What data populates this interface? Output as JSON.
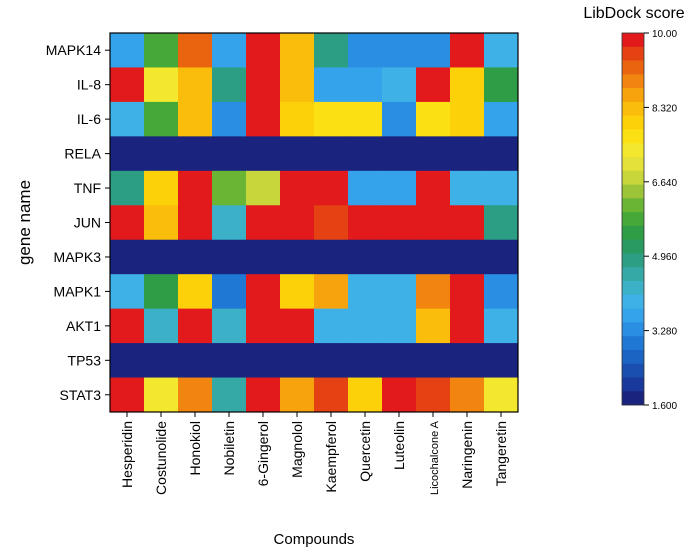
{
  "chart_data": {
    "type": "heatmap",
    "title": "",
    "xlabel": "Compounds",
    "ylabel": "gene name",
    "compounds": [
      "Hesperidin",
      "Costunolide",
      "Honokiol",
      "Nobiletin",
      "6-Gingerol",
      "Magnolol",
      "Kaempferol",
      "Quercetin",
      "Luteolin",
      "Licochalcone A",
      "Naringenin",
      "Tangeretin"
    ],
    "genes": [
      "MAPK14",
      "IL-8",
      "IL-6",
      "RELA",
      "TNF",
      "JUN",
      "MAPK3",
      "MAPK1",
      "AKT1",
      "TP53",
      "STAT3"
    ],
    "values": [
      [
        3.6,
        5.9,
        9.1,
        3.5,
        10.0,
        8.4,
        5.0,
        3.3,
        3.3,
        3.3,
        10.0,
        3.9
      ],
      [
        10.0,
        7.4,
        8.4,
        4.9,
        10.0,
        8.3,
        3.6,
        3.6,
        3.8,
        10.0,
        8.0,
        5.4
      ],
      [
        3.8,
        5.9,
        8.2,
        3.4,
        10.0,
        8.0,
        7.6,
        7.6,
        3.4,
        7.6,
        8.0,
        3.7
      ],
      [
        1.6,
        1.6,
        1.6,
        1.6,
        1.6,
        1.6,
        1.6,
        1.6,
        1.6,
        1.6,
        1.6,
        1.6
      ],
      [
        5.0,
        8.0,
        10.0,
        6.0,
        6.7,
        10.0,
        10.0,
        3.5,
        3.5,
        10.0,
        3.9,
        3.9
      ],
      [
        10.0,
        8.4,
        10.0,
        4.3,
        10.0,
        10.0,
        9.4,
        10.0,
        10.0,
        10.0,
        10.0,
        4.9
      ],
      [
        1.6,
        1.6,
        1.6,
        1.6,
        1.6,
        1.6,
        1.6,
        1.6,
        1.6,
        1.6,
        1.6,
        1.6
      ],
      [
        3.9,
        5.6,
        8.0,
        2.9,
        10.0,
        8.0,
        8.7,
        3.9,
        3.9,
        9.0,
        10.0,
        3.3
      ],
      [
        10.0,
        4.3,
        10.0,
        4.3,
        10.0,
        10.0,
        3.9,
        3.9,
        3.9,
        8.4,
        10.0,
        3.8
      ],
      [
        1.6,
        1.6,
        1.6,
        1.6,
        1.6,
        1.6,
        1.6,
        1.6,
        1.6,
        1.6,
        1.6,
        1.6
      ],
      [
        10.0,
        7.5,
        9.0,
        4.6,
        10.0,
        8.5,
        9.4,
        8.0,
        10.0,
        9.4,
        9.0,
        7.2
      ]
    ],
    "colorbar": {
      "label": "LibDock score",
      "min": 1.6,
      "max": 10.0,
      "ticks": [
        "10.00",
        "8.320",
        "6.640",
        "4.960",
        "3.280",
        "1.600"
      ],
      "tick_values": [
        10.0,
        8.32,
        6.64,
        4.96,
        3.28,
        1.6
      ],
      "colors": [
        "#1a237e",
        "#19399d",
        "#1a4fb0",
        "#1b64c3",
        "#1e78d4",
        "#2a8ee3",
        "#35a2ec",
        "#3eb1e6",
        "#3bb0c6",
        "#35a9a5",
        "#2c9e84",
        "#2a9a63",
        "#2e9d45",
        "#45a838",
        "#6bb535",
        "#9cc439",
        "#c8d63b",
        "#e4e23a",
        "#f4e82f",
        "#fbe114",
        "#fdd10a",
        "#fbbd0b",
        "#f7a30d",
        "#f1850f",
        "#ea6410",
        "#e44212",
        "#e21a1c"
      ]
    }
  }
}
